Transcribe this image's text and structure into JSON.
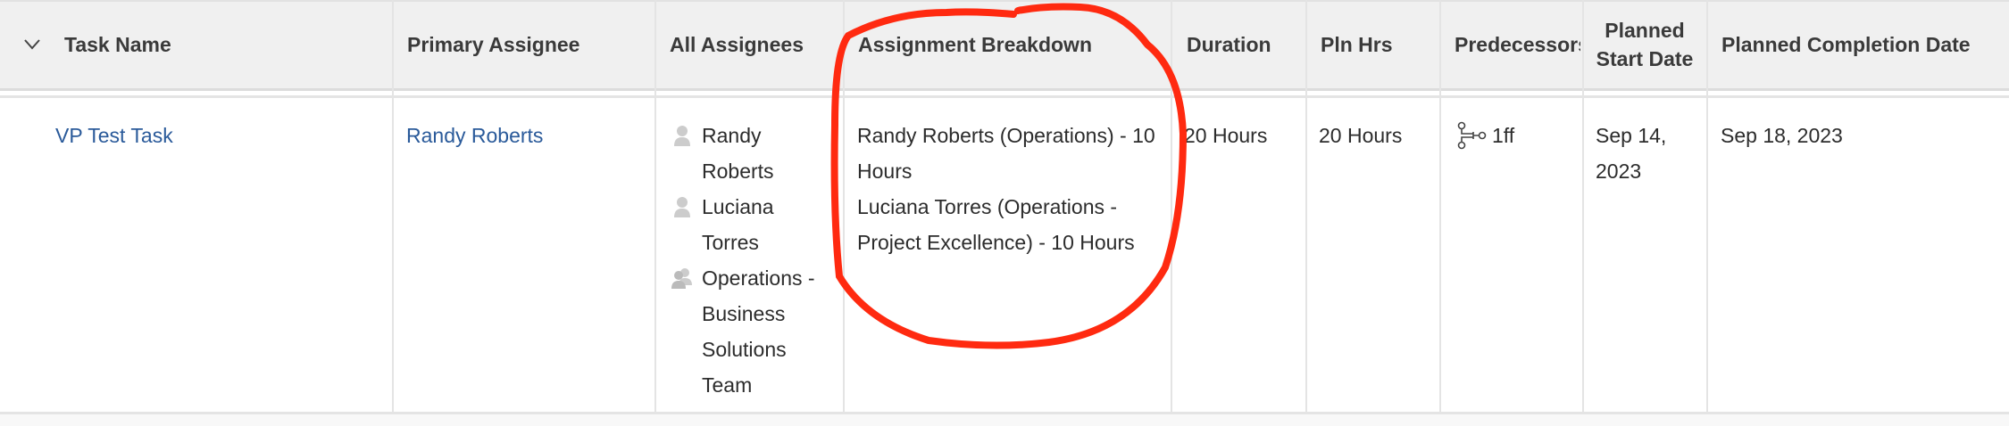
{
  "header": {
    "columns": [
      "Task Name",
      "Primary Assignee",
      "All Assignees",
      "Assignment Breakdown",
      "Duration",
      "Pln Hrs",
      "Predecessors",
      "Planned Start Date",
      "Planned Completion Date"
    ]
  },
  "row": {
    "task_name": "VP Test Task",
    "primary_assignee": "Randy Roberts",
    "all_assignees": [
      {
        "name": "Randy Roberts",
        "icon": "user-icon"
      },
      {
        "name": "Luciana Torres",
        "icon": "user-icon"
      },
      {
        "name": "Operations - Business Solutions Team",
        "icon": "team-icon"
      }
    ],
    "assignment_breakdown": [
      "Randy Roberts (Operations) - 10 Hours",
      "Luciana Torres (Operations - Project Excellence) - 10 Hours"
    ],
    "duration": "20 Hours",
    "planned_hours": "20 Hours",
    "predecessors": "1ff",
    "planned_start_date": "Sep 14, 2023",
    "planned_completion_date": "Sep 18, 2023"
  },
  "colors": {
    "link": "#2a5a9a",
    "header_bg": "#f0f0f0",
    "annotation": "#ff2a10"
  }
}
